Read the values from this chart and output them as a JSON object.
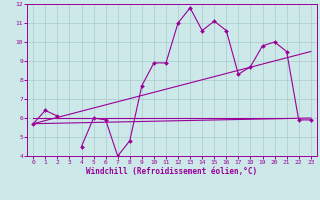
{
  "xlabel": "Windchill (Refroidissement éolien,°C)",
  "background_color": "#cce8e8",
  "grid_color": "#aacccc",
  "line_color": "#990099",
  "x_hours": [
    0,
    1,
    2,
    3,
    4,
    5,
    6,
    7,
    8,
    9,
    10,
    11,
    12,
    13,
    14,
    15,
    16,
    17,
    18,
    19,
    20,
    21,
    22,
    23
  ],
  "series1": [
    5.7,
    6.4,
    6.1,
    null,
    4.5,
    6.0,
    5.9,
    4.0,
    4.8,
    7.7,
    8.9,
    8.9,
    11.0,
    11.8,
    10.6,
    11.1,
    10.6,
    8.3,
    8.7,
    9.8,
    10.0,
    9.5,
    5.9,
    5.9
  ],
  "series2_x": [
    0,
    23
  ],
  "series2_y": [
    5.7,
    6.0
  ],
  "series3_x": [
    0,
    23
  ],
  "series3_y": [
    5.7,
    9.5
  ],
  "series4_x": [
    0,
    21
  ],
  "series4_y": [
    6.0,
    6.0
  ],
  "ylim": [
    4,
    12
  ],
  "xlim": [
    0,
    23
  ],
  "yticks": [
    4,
    5,
    6,
    7,
    8,
    9,
    10,
    11,
    12
  ],
  "xticks": [
    0,
    1,
    2,
    3,
    4,
    5,
    6,
    7,
    8,
    9,
    10,
    11,
    12,
    13,
    14,
    15,
    16,
    17,
    18,
    19,
    20,
    21,
    22,
    23
  ]
}
